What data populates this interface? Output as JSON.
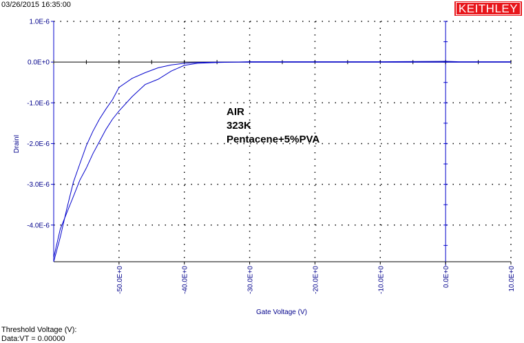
{
  "header": {
    "timestamp": "03/26/2015 16:35:00",
    "logo_text": "KEITHLEY"
  },
  "footer": {
    "line1": "Threshold Voltage (V):",
    "line2": "Data:VT = 0.00000"
  },
  "colors": {
    "curve": "#0000cc",
    "axis_blue": "#0000cc",
    "logo_red": "#e8161b"
  },
  "chart_data": {
    "type": "line",
    "xlabel": "Gate Voltage (V)",
    "ylabel": "DrainI",
    "xlim": [
      -60,
      10
    ],
    "ylim": [
      -4.9e-06,
      1e-06
    ],
    "x_ticks": [
      -50,
      -40,
      -30,
      -20,
      -10,
      0,
      10
    ],
    "x_tick_labels": [
      "-50.0E+0",
      "-40.0E+0",
      "-30.0E+0",
      "-20.0E+0",
      "-10.0E+0",
      "0.0E+0",
      "10.0E+0"
    ],
    "y_ticks": [
      1e-06,
      0,
      -1e-06,
      -2e-06,
      -3e-06,
      -4e-06
    ],
    "y_tick_labels": [
      "1.0E-6",
      "0.0E+0",
      "-1.0E-6",
      "-2.0E-6",
      "-3.0E-6",
      "-4.0E-6"
    ],
    "grid": true,
    "annotations": [
      "AIR",
      "323K",
      "Pentacene+5%PVA"
    ],
    "series": [
      {
        "x": [
          -60,
          -59,
          -58,
          -57,
          -56,
          -55,
          -54,
          -53,
          -52,
          -51,
          -50,
          -48,
          -46,
          -44,
          -42,
          -40,
          -38,
          -35,
          -30,
          -20,
          -10,
          0,
          2,
          10
        ],
        "values": [
          -4.9e-06,
          -4.3e-06,
          -3.6e-06,
          -2.95e-06,
          -2.5e-06,
          -2.05e-06,
          -1.7e-06,
          -1.4e-06,
          -1.15e-06,
          -9.2e-07,
          -6.2e-07,
          -4e-07,
          -2.6e-07,
          -1.4e-07,
          -7e-08,
          -3e-08,
          -1e-08,
          0,
          0,
          0,
          0,
          0,
          0,
          0
        ]
      },
      {
        "x": [
          -60,
          -59,
          -58,
          -57,
          -56,
          -55,
          -54,
          -53,
          -52,
          -51,
          -50,
          -48,
          -46,
          -44,
          -42,
          -40,
          -38,
          -35,
          -30,
          -20,
          -10,
          0,
          2,
          10
        ],
        "values": [
          -4.8e-06,
          -4.1e-06,
          -3.7e-06,
          -3.3e-06,
          -2.9e-06,
          -2.6e-06,
          -2.25e-06,
          -1.95e-06,
          -1.65e-06,
          -1.4e-06,
          -1.2e-06,
          -8.5e-07,
          -5.5e-07,
          -4.2e-07,
          -2.2e-07,
          -8e-08,
          -3e-08,
          -1e-08,
          1e-08,
          1e-08,
          1e-08,
          2e-08,
          1e-08,
          1e-08
        ]
      }
    ]
  }
}
